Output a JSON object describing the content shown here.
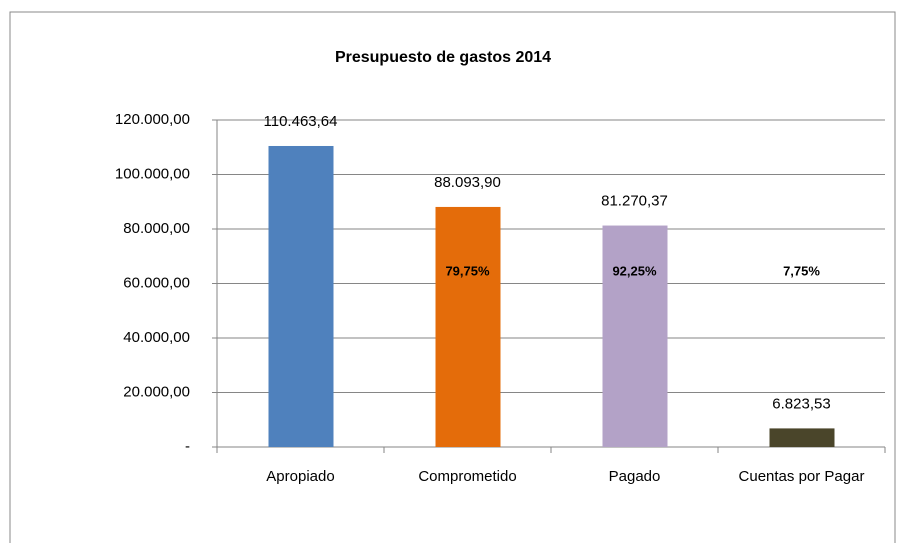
{
  "chart_data": {
    "type": "bar",
    "title": "Presupuesto de gastos 2014",
    "categories": [
      "Apropiado",
      "Comprometido",
      "Pagado",
      "Cuentas por Pagar"
    ],
    "values": [
      110463.64,
      88093.9,
      81270.37,
      6823.53
    ],
    "value_labels": [
      "110.463,64",
      "88.093,90",
      "81.270,37",
      "6.823,53"
    ],
    "percent_labels": [
      null,
      "79,75%",
      "92,25%",
      "7,75%"
    ],
    "colors": [
      "#4f81bd",
      "#e46c0a",
      "#b3a2c7",
      "#4a452a"
    ],
    "ylim": [
      0,
      120000
    ],
    "yticks": [
      {
        "value": 0,
        "label": "-"
      },
      {
        "value": 20000,
        "label": "20.000,00"
      },
      {
        "value": 40000,
        "label": "40.000,00"
      },
      {
        "value": 60000,
        "label": "60.000,00"
      },
      {
        "value": 80000,
        "label": "80.000,00"
      },
      {
        "value": 100000,
        "label": "100.000,00"
      },
      {
        "value": 120000,
        "label": "120.000,00"
      }
    ],
    "grid": true
  }
}
